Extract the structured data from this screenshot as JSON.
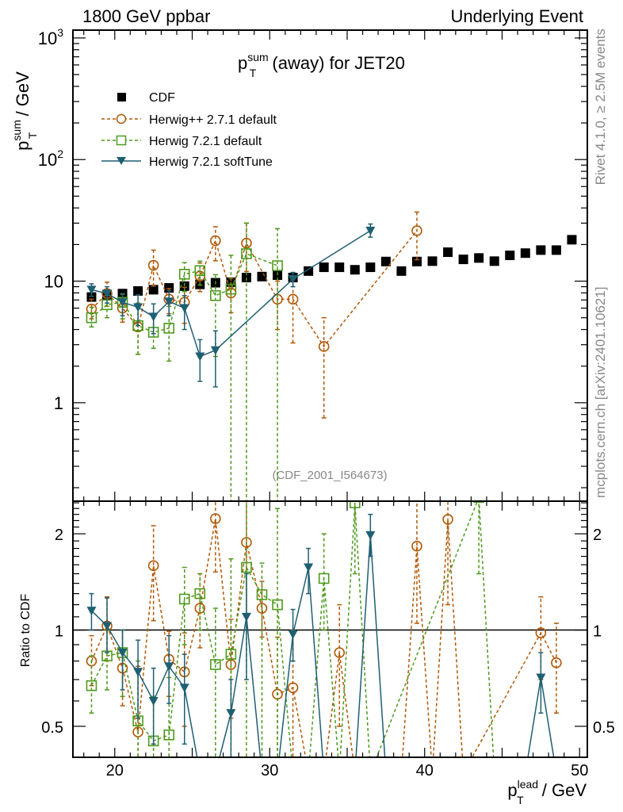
{
  "header": {
    "left": "1800 GeV ppbar",
    "right": "Underlying Event"
  },
  "side_labels": {
    "rivet": "Rivet 4.1.0, ≥ 2.5M events",
    "mcplots": "mcplots.cern.ch [arXiv:2401.10621]"
  },
  "chart_data": [
    {
      "type": "scatter",
      "title": "p_T^sum (away) for JET20",
      "title_parts": {
        "main": "p",
        "sup": "sum",
        "sub": "T",
        "rest": " (away) for JET20"
      },
      "ylabel": "p_T^sum / GeV",
      "ylabel_parts": {
        "main": "p",
        "sup": "sum",
        "sub": "T",
        "rest": " / GeV"
      },
      "xlabel": "",
      "yscale": "log",
      "xlim": [
        17.3,
        50.5
      ],
      "ylim": [
        0.155,
        1160
      ],
      "yticks": [
        {
          "v": 1,
          "label": "1"
        },
        {
          "v": 10,
          "label": "10"
        },
        {
          "v": 100,
          "label": "10",
          "exp": "2"
        },
        {
          "v": 1000,
          "label": "10",
          "exp": "3"
        }
      ],
      "annotation": "(CDF_2001_I564673)",
      "legend_position": "top-left",
      "legend": [
        {
          "name": "CDF",
          "marker": "filled-square",
          "color": "#000000",
          "line": "none"
        },
        {
          "name": "Herwig++ 2.7.1 default",
          "marker": "open-circle",
          "color": "#b35806",
          "line": "dashed"
        },
        {
          "name": "Herwig 7.2.1 default",
          "marker": "open-square",
          "color": "#4d9a1c",
          "line": "dashed"
        },
        {
          "name": "Herwig 7.2.1 softTune",
          "marker": "filled-triangle-down",
          "color": "#1f5f72",
          "line": "solid"
        }
      ],
      "series": [
        {
          "name": "CDF",
          "x": [
            18.5,
            19.5,
            20.5,
            21.5,
            22.5,
            23.5,
            24.5,
            25.5,
            26.5,
            27.5,
            28.5,
            29.5,
            30.5,
            31.5,
            32.5,
            33.5,
            34.5,
            35.5,
            36.5,
            37.5,
            38.5,
            39.5,
            40.5,
            41.5,
            42.5,
            43.5,
            44.5,
            45.5,
            46.5,
            47.5,
            48.5,
            49.5
          ],
          "y": [
            7.4,
            7.7,
            7.9,
            8.3,
            8.5,
            8.8,
            9.1,
            9.4,
            9.7,
            9.8,
            10.7,
            10.9,
            11.2,
            10.7,
            12.1,
            13.0,
            13.0,
            12.4,
            13.0,
            14.5,
            12.1,
            14.5,
            14.6,
            17.3,
            15.1,
            15.5,
            14.6,
            16.3,
            17.0,
            18.0,
            18.0,
            21.9
          ],
          "err_lo": [],
          "err_hi": []
        },
        {
          "name": "Herwig++ 2.7.1 default",
          "x": [
            18.5,
            19.5,
            20.5,
            21.5,
            22.5,
            23.5,
            24.5,
            25.5,
            26.5,
            27.5,
            28.5,
            30.5,
            31.5,
            33.5,
            39.5
          ],
          "y": [
            5.9,
            7.9,
            6.0,
            4.2,
            13.5,
            7.1,
            6.7,
            11.0,
            21.5,
            8.0,
            20.5,
            7.1,
            7.1,
            2.9,
            26.0
          ],
          "err_lo": [
            4.9,
            6.2,
            4.6,
            2.5,
            9.1,
            5.4,
            4.5,
            8.2,
            14.7,
            5.5,
            12.0,
            4.0,
            3.1,
            0.75,
            15.0
          ],
          "err_hi": [
            7.1,
            9.8,
            7.9,
            6.3,
            18.0,
            8.7,
            8.9,
            14.1,
            28.0,
            10.5,
            30.0,
            10.0,
            10.5,
            5.0,
            37.0
          ]
        },
        {
          "name": "Herwig 7.2.1 default",
          "x": [
            18.5,
            19.5,
            20.5,
            21.5,
            22.5,
            23.5,
            24.5,
            25.5,
            26.5,
            27.5,
            28.5,
            30.5
          ],
          "y": [
            5.0,
            6.4,
            6.7,
            4.3,
            3.8,
            4.1,
            11.4,
            12.2,
            7.6,
            8.6,
            16.8,
            13.4
          ],
          "err_lo": [
            4.2,
            5.0,
            4.9,
            2.5,
            2.8,
            2.2,
            8.2,
            9.3,
            2.4,
            0.15,
            0.15,
            0.15
          ],
          "err_hi": [
            6.1,
            7.7,
            7.8,
            6.6,
            5.2,
            6.2,
            14.2,
            14.6,
            11.3,
            16.3,
            30.0,
            27.0
          ]
        },
        {
          "name": "Herwig 7.2.1 softTune",
          "x": [
            18.5,
            19.5,
            20.5,
            21.5,
            22.5,
            23.5,
            24.5,
            25.5,
            26.5,
            31.5,
            36.5
          ],
          "y": [
            8.5,
            7.9,
            6.7,
            6.1,
            5.1,
            6.8,
            6.0,
            2.4,
            2.7,
            10.4,
            26.0
          ],
          "err_lo": [
            7.5,
            6.6,
            5.2,
            4.3,
            3.7,
            5.2,
            4.0,
            1.5,
            1.35,
            9.0,
            23.0
          ],
          "err_hi": [
            9.5,
            9.0,
            7.9,
            7.7,
            6.5,
            8.4,
            7.6,
            3.3,
            3.9,
            11.8,
            29.5
          ]
        }
      ]
    },
    {
      "type": "scatter",
      "title": "",
      "ylabel": "Ratio to CDF",
      "xlabel": "p_T^lead / GeV",
      "xlabel_parts": {
        "main": "p",
        "sup": "lead",
        "sub": "T",
        "rest": " / GeV"
      },
      "yscale": "log",
      "xlim": [
        17.3,
        50.5
      ],
      "ylim": [
        0.4,
        2.53
      ],
      "xticks": [
        {
          "v": 20,
          "label": "20"
        },
        {
          "v": 30,
          "label": "30"
        },
        {
          "v": 40,
          "label": "40"
        },
        {
          "v": 50,
          "label": "50"
        }
      ],
      "yticks": [
        {
          "v": 0.5,
          "label": "0.5"
        },
        {
          "v": 1,
          "label": "1"
        },
        {
          "v": 2,
          "label": "2"
        }
      ],
      "reference_line": 1,
      "series": [
        {
          "name": "Herwig++ 2.7.1 default",
          "x": [
            18.5,
            19.5,
            20.5,
            21.5,
            22.5,
            23.5,
            24.5,
            25.5,
            26.5,
            27.5,
            28.5,
            29.5,
            30.5,
            31.5,
            32.5,
            33.5,
            34.5,
            35.5,
            36.5,
            37.5,
            38.5,
            39.5,
            40.5,
            41.5,
            42.5,
            47.5,
            48.5
          ],
          "y": [
            0.8,
            1.03,
            0.76,
            0.48,
            1.59,
            0.81,
            0.74,
            1.17,
            2.23,
            0.78,
            1.88,
            1.17,
            0.63,
            0.66,
            0.1,
            0.22,
            0.85,
            0.1,
            0.1,
            0.1,
            0.1,
            1.83,
            0.1,
            2.22,
            0.1,
            0.98,
            0.79
          ],
          "err_lo": [
            0.67,
            0.8,
            0.58,
            0.28,
            1.07,
            0.62,
            0.5,
            0.88,
            1.52,
            0.53,
            1.12,
            0.95,
            0.3,
            0.3,
            0.1,
            0.06,
            0.5,
            0.1,
            0.1,
            0.1,
            0.1,
            1.05,
            0.1,
            1.2,
            0.1,
            0.7,
            0.55
          ],
          "err_hi": [
            0.96,
            1.27,
            1.0,
            0.77,
            2.12,
            0.99,
            0.98,
            1.5,
            2.9,
            1.08,
            2.8,
            1.42,
            0.95,
            1.0,
            0.1,
            0.38,
            1.2,
            0.1,
            0.1,
            0.1,
            0.1,
            2.6,
            0.1,
            3.2,
            0.1,
            1.27,
            1.05
          ]
        },
        {
          "name": "Herwig 7.2.1 default",
          "x": [
            18.5,
            19.5,
            20.5,
            21.5,
            22.5,
            23.5,
            24.5,
            25.5,
            26.5,
            27.5,
            28.5,
            29.5,
            30.5,
            31.5,
            32.5,
            33.5,
            34.5,
            35.5,
            36.5,
            43.5,
            44.5
          ],
          "y": [
            0.67,
            0.83,
            0.85,
            0.52,
            0.45,
            0.47,
            1.25,
            1.3,
            0.78,
            0.84,
            1.57,
            1.29,
            1.2,
            0.1,
            0.1,
            1.45,
            0.1,
            2.5,
            0.1,
            2.6,
            0.1
          ],
          "err_lo": [
            0.55,
            0.65,
            0.62,
            0.3,
            0.33,
            0.25,
            0.9,
            1.0,
            0.25,
            0.02,
            0.02,
            0.1,
            0.02,
            0.1,
            0.1,
            1.0,
            0.1,
            1.5,
            0.1,
            1.5,
            0.1
          ],
          "err_hi": [
            0.83,
            1.0,
            1.0,
            0.8,
            0.62,
            0.71,
            1.57,
            1.5,
            1.17,
            1.67,
            2.8,
            1.62,
            2.4,
            0.1,
            0.1,
            2.0,
            0.1,
            3.0,
            0.1,
            3.5,
            0.1
          ]
        },
        {
          "name": "Herwig 7.2.1 softTune",
          "x": [
            18.5,
            19.5,
            20.5,
            21.5,
            22.5,
            23.5,
            24.5,
            25.5,
            26.5,
            27.5,
            28.5,
            29.5,
            30.5,
            31.5,
            32.5,
            33.5,
            35.5,
            36.5,
            37.5,
            46.5,
            47.5,
            48.5
          ],
          "y": [
            1.15,
            1.03,
            0.85,
            0.74,
            0.6,
            0.77,
            0.66,
            0.26,
            0.28,
            0.55,
            1.1,
            0.2,
            0.2,
            0.97,
            1.57,
            0.2,
            0.2,
            1.98,
            0.2,
            0.2,
            0.71,
            0.2
          ],
          "err_lo": [
            1.0,
            0.85,
            0.65,
            0.53,
            0.44,
            0.59,
            0.44,
            0.16,
            0.14,
            0.4,
            0.7,
            0.2,
            0.2,
            0.8,
            1.3,
            0.2,
            0.2,
            1.7,
            0.2,
            0.2,
            0.55,
            0.2
          ],
          "err_hi": [
            1.3,
            1.26,
            1.0,
            0.93,
            0.76,
            0.96,
            0.84,
            0.35,
            0.4,
            0.7,
            1.5,
            0.2,
            0.2,
            1.16,
            1.8,
            0.2,
            0.2,
            2.3,
            0.2,
            0.2,
            0.85,
            0.2
          ]
        }
      ]
    }
  ]
}
